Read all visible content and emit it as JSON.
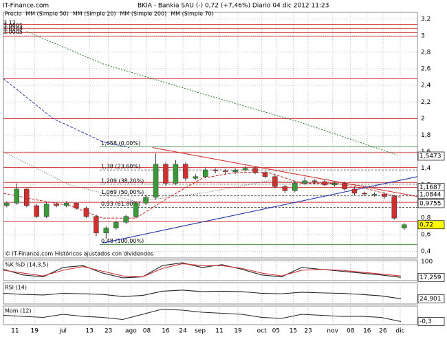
{
  "header": {
    "site": "IT-Finance.com",
    "title": "BKIA - Bankia SAU (-)   0,72 (+7,46%)   Diario  04 dic 2012 11:23"
  },
  "footer": "© IT-Finance.com  Históricos ajustados con dividendos",
  "chart_data": [
    {
      "type": "candlestick",
      "legend": [
        {
          "name": "Precio",
          "color": "#000000"
        },
        {
          "name": "MM (Simple 50)",
          "color": "#555555"
        },
        {
          "name": "MM (Simple 20)",
          "color": "#cc2222"
        },
        {
          "name": "MM (Simple 200)",
          "color": "#227722"
        },
        {
          "name": "MM (Simple 70)",
          "color": "#2233aa"
        }
      ],
      "xlim": [
        0,
        125
      ],
      "xticks": [
        {
          "value": 3.5,
          "label": "11"
        },
        {
          "value": 9.4,
          "label": "19"
        },
        {
          "value": 18,
          "label": "jul"
        },
        {
          "value": 26,
          "label": "13"
        },
        {
          "value": 31.7,
          "label": "23"
        },
        {
          "value": 38.5,
          "label": "ago"
        },
        {
          "value": 43.3,
          "label": "08"
        },
        {
          "value": 49,
          "label": "16"
        },
        {
          "value": 54.2,
          "label": "24"
        },
        {
          "value": 59.4,
          "label": "sep"
        },
        {
          "value": 65.2,
          "label": "11"
        },
        {
          "value": 70.8,
          "label": "19"
        },
        {
          "value": 78,
          "label": "oct"
        },
        {
          "value": 82.3,
          "label": "05"
        },
        {
          "value": 87.5,
          "label": "15"
        },
        {
          "value": 92,
          "label": "23"
        },
        {
          "value": 99.4,
          "label": "nov"
        },
        {
          "value": 104.8,
          "label": "08"
        },
        {
          "value": 109.8,
          "label": "16"
        },
        {
          "value": 114.6,
          "label": "26"
        },
        {
          "value": 119.8,
          "label": "dic"
        }
      ],
      "ylim": [
        0.32,
        3.28
      ],
      "yticks": [
        {
          "value": 3.2,
          "label": "3,2"
        },
        3,
        {
          "value": 2.8,
          "label": "2,8"
        },
        {
          "value": 2.6,
          "label": "2,6"
        },
        {
          "value": 2.4,
          "label": "2,4"
        },
        {
          "value": 2.2,
          "label": "2,2"
        },
        2,
        {
          "value": 1.8,
          "label": "1,8"
        },
        {
          "value": 1.6,
          "label": "1,6"
        },
        {
          "value": 1.4,
          "label": "1,4"
        },
        {
          "value": 1.2,
          "label": "1,2"
        },
        1,
        {
          "value": 0.8,
          "label": "0,8"
        },
        {
          "value": 0.6,
          "label": "0,6"
        },
        {
          "value": 0.4,
          "label": "0,4"
        }
      ],
      "grid": true,
      "up_color": "#3a9a3a",
      "down_color": "#d03030",
      "x": [
        1,
        4,
        7,
        10,
        13,
        16,
        19,
        22,
        25,
        28,
        31,
        34,
        37,
        40,
        43,
        46,
        49,
        52,
        55,
        58,
        61,
        64,
        67,
        70,
        73,
        76,
        79,
        82,
        85,
        88,
        91,
        94,
        97,
        100,
        103,
        106,
        109,
        112,
        115,
        118,
        121
      ],
      "open": [
        0.95,
        0.98,
        1.15,
        0.95,
        0.82,
        0.97,
        0.95,
        0.98,
        0.92,
        0.82,
        0.62,
        0.68,
        0.75,
        0.82,
        0.98,
        1.05,
        1.45,
        1.22,
        1.45,
        1.28,
        1.3,
        1.38,
        1.37,
        1.36,
        1.38,
        1.4,
        1.35,
        1.3,
        1.18,
        1.13,
        1.22,
        1.25,
        1.24,
        1.2,
        1.22,
        1.15,
        1.1,
        1.09,
        1.09,
        1.06,
        0.68
      ],
      "high": [
        1.0,
        1.22,
        1.16,
        0.97,
        0.99,
        0.99,
        1.0,
        0.99,
        0.94,
        0.84,
        0.7,
        0.77,
        0.84,
        1.0,
        1.08,
        1.58,
        1.47,
        1.5,
        1.47,
        1.33,
        1.41,
        1.4,
        1.39,
        1.4,
        1.43,
        1.42,
        1.37,
        1.32,
        1.2,
        1.25,
        1.3,
        1.27,
        1.26,
        1.24,
        1.24,
        1.17,
        1.12,
        1.11,
        1.11,
        1.08,
        0.74
      ],
      "low": [
        0.93,
        0.96,
        0.93,
        0.8,
        0.8,
        0.93,
        0.93,
        0.9,
        0.8,
        0.58,
        0.55,
        0.66,
        0.73,
        0.8,
        0.96,
        1.02,
        1.19,
        1.2,
        1.25,
        1.26,
        1.28,
        1.34,
        1.33,
        1.33,
        1.36,
        1.33,
        1.28,
        1.16,
        1.1,
        1.11,
        1.2,
        1.21,
        1.18,
        1.18,
        1.13,
        1.08,
        1.07,
        1.06,
        1.03,
        0.78,
        0.66
      ],
      "close": [
        0.98,
        1.15,
        0.95,
        0.82,
        0.97,
        0.95,
        0.98,
        0.92,
        0.82,
        0.62,
        0.68,
        0.75,
        0.82,
        0.98,
        1.05,
        1.45,
        1.22,
        1.45,
        1.28,
        1.3,
        1.38,
        1.37,
        1.36,
        1.38,
        1.4,
        1.35,
        1.3,
        1.18,
        1.13,
        1.22,
        1.25,
        1.24,
        1.2,
        1.22,
        1.15,
        1.1,
        1.09,
        1.09,
        1.06,
        0.8,
        0.72
      ],
      "series": [
        {
          "name": "MM (Simple 50)",
          "color": "#555555",
          "dash": "1 2",
          "x": [
            0,
            20,
            40,
            60,
            80,
            100,
            120
          ],
          "values": [
            1.6,
            1.2,
            1.0,
            1.1,
            1.25,
            1.22,
            1.15
          ]
        },
        {
          "name": "MM (Simple 20)",
          "color": "#cc2222",
          "dash": "4 2",
          "x": [
            0,
            10,
            20,
            30,
            40,
            50,
            60,
            70,
            80,
            90,
            100,
            110,
            120
          ],
          "values": [
            1.1,
            1.02,
            0.95,
            0.8,
            0.8,
            1.05,
            1.28,
            1.35,
            1.35,
            1.22,
            1.22,
            1.15,
            1.05
          ]
        },
        {
          "name": "MM (Simple 200)",
          "color": "#227722",
          "dash": "2 2",
          "x": [
            7,
            30,
            60,
            90,
            119
          ],
          "values": [
            3.05,
            2.66,
            2.3,
            1.95,
            1.56
          ]
        },
        {
          "name": "MM (Simple 70)",
          "color": "#2233aa",
          "dash": "4 2",
          "x": [
            0,
            15,
            30,
            38
          ],
          "values": [
            2.48,
            2.0,
            1.72,
            1.65
          ]
        }
      ],
      "resistance_lines": [
        3.134,
        3.084,
        3.035,
        2.99,
        2.48,
        2.0,
        1.59,
        1.41,
        1.23,
        1.17,
        0.99,
        0.755
      ],
      "resistance_color": "#d03030",
      "fib_levels": [
        {
          "value": 1.658,
          "label": "1,658 (0,00%)"
        },
        {
          "value": 1.38,
          "label": "1,38 (23,60%)"
        },
        {
          "value": 1.209,
          "label": "1,209 (38,20%)"
        },
        {
          "value": 1.069,
          "label": "1,069 (50,00%)"
        },
        {
          "value": 0.93,
          "label": "0,93 (61,80%)"
        },
        {
          "value": 0.48,
          "label": "0,48 (100,00%)"
        }
      ],
      "trendlines": [
        {
          "color": "#d03030",
          "x": [
            45,
            125
          ],
          "values": [
            1.65,
            1.06
          ]
        },
        {
          "color": "#2233aa",
          "x": [
            30,
            125
          ],
          "values": [
            0.5,
            1.3
          ]
        }
      ],
      "corner_labels": [
        "3,12",
        "3,0605",
        "3,0203",
        "3,0005"
      ],
      "price_labels": [
        {
          "value": 1.5473,
          "label": "1,5473",
          "color": "#000000",
          "fill": "#ffffff"
        },
        {
          "value": 1.1687,
          "label": "1,1687",
          "color": "#cc0000",
          "fill": "#ffffff"
        },
        {
          "value": 1.0844,
          "label": "1,0844",
          "color": "#000000",
          "fill": "#ffffff"
        },
        {
          "value": 0.9755,
          "label": "0,9755",
          "color": "#cc0000",
          "fill": "#ffffff"
        },
        {
          "value": 0.72,
          "label": "0,72",
          "color": "#000000",
          "fill": "#ffff00"
        }
      ]
    },
    {
      "type": "line",
      "title": "%K %D (14,3,5)",
      "ylim": [
        0,
        110
      ],
      "yticks": [
        100
      ],
      "series": [
        {
          "name": "%K",
          "color": "#222222",
          "x": [
            0,
            6,
            12,
            18,
            24,
            30,
            36,
            42,
            48,
            54,
            60,
            66,
            72,
            78,
            84,
            90,
            96,
            102,
            108,
            114,
            120
          ],
          "values": [
            60,
            30,
            20,
            70,
            80,
            40,
            15,
            20,
            80,
            95,
            70,
            85,
            60,
            30,
            20,
            70,
            60,
            50,
            40,
            30,
            17.259
          ]
        },
        {
          "name": "%D",
          "color": "#cc3333",
          "x": [
            0,
            6,
            12,
            18,
            24,
            30,
            36,
            42,
            48,
            54,
            60,
            66,
            72,
            78,
            84,
            90,
            96,
            102,
            108,
            114,
            120
          ],
          "values": [
            55,
            40,
            25,
            55,
            75,
            50,
            25,
            20,
            65,
            90,
            80,
            80,
            65,
            40,
            25,
            55,
            60,
            55,
            45,
            35,
            25
          ]
        }
      ],
      "current": {
        "value": 17.259,
        "label": "17,259"
      }
    },
    {
      "type": "line",
      "title": "RSI (14)",
      "ylim": [
        0,
        100
      ],
      "series": [
        {
          "name": "RSI",
          "color": "#222222",
          "x": [
            0,
            6,
            12,
            18,
            24,
            30,
            36,
            42,
            48,
            54,
            60,
            66,
            72,
            78,
            84,
            90,
            96,
            102,
            108,
            114,
            120
          ],
          "values": [
            50,
            45,
            42,
            50,
            48,
            45,
            35,
            40,
            60,
            65,
            58,
            60,
            58,
            50,
            48,
            55,
            52,
            50,
            45,
            38,
            24.901
          ]
        }
      ],
      "current": {
        "value": 24.901,
        "label": "24,901"
      }
    },
    {
      "type": "line",
      "title": "Mom (12)",
      "ylim": [
        -0.45,
        0.45
      ],
      "series": [
        {
          "name": "Mom",
          "color": "#222222",
          "x": [
            0,
            6,
            12,
            18,
            24,
            30,
            36,
            42,
            48,
            54,
            60,
            66,
            72,
            78,
            84,
            90,
            96,
            102,
            108,
            114,
            120
          ],
          "values": [
            0,
            -0.05,
            -0.1,
            0.05,
            -0.05,
            -0.1,
            -0.2,
            0.05,
            0.3,
            0.25,
            0.15,
            0.1,
            0.05,
            -0.1,
            -0.15,
            0.05,
            0,
            -0.05,
            -0.05,
            -0.1,
            -0.3
          ]
        }
      ],
      "current": {
        "value": -0.3,
        "label": "-0,3"
      }
    }
  ]
}
